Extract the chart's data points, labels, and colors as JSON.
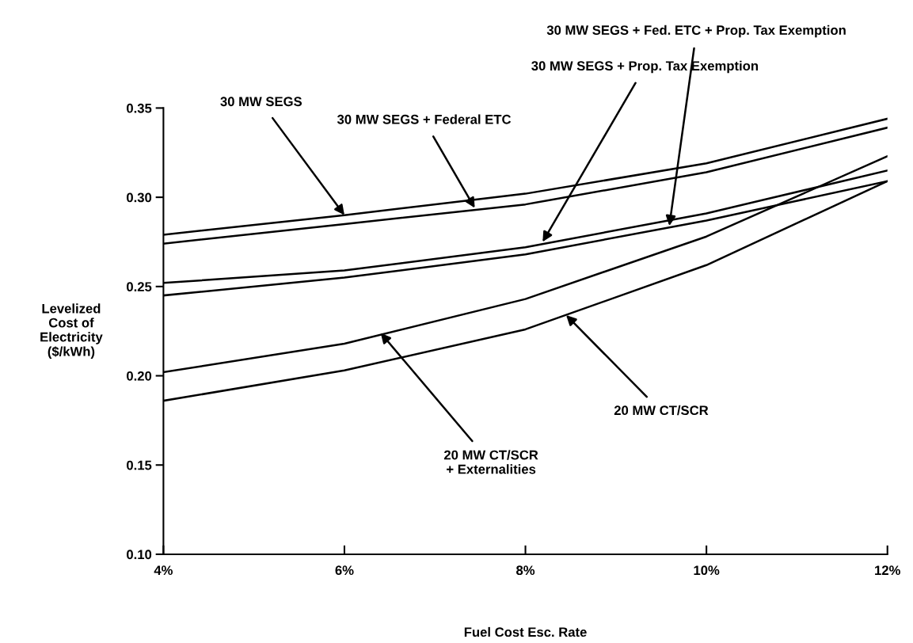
{
  "chart_data": {
    "type": "line",
    "xlabel": "Fuel Cost Esc. Rate",
    "ylabel": "Levelized\nCost of\nElectricity\n($/kWh)",
    "x": [
      4,
      6,
      8,
      10,
      12
    ],
    "series": [
      {
        "color": "#000000",
        "values": [
          0.279,
          0.29,
          0.302,
          0.319,
          0.344
        ]
      },
      {
        "color": "#000000",
        "values": [
          0.274,
          0.285,
          0.296,
          0.314,
          0.339
        ]
      },
      {
        "color": "#000000",
        "values": [
          0.252,
          0.259,
          0.272,
          0.291,
          0.315
        ]
      },
      {
        "color": "#000000",
        "values": [
          0.245,
          0.255,
          0.268,
          0.287,
          0.309
        ]
      },
      {
        "color": "#000000",
        "values": [
          0.202,
          0.218,
          0.243,
          0.278,
          0.323
        ]
      },
      {
        "color": "#000000",
        "values": [
          0.186,
          0.203,
          0.226,
          0.262,
          0.309
        ]
      }
    ],
    "annotations": [
      {
        "text": "30 MW SEGS",
        "x": 6.0,
        "y": 0.29
      },
      {
        "text": "30 MW SEGS + Federal ETC",
        "x": 7.44,
        "y": 0.294
      },
      {
        "text": "30 MW SEGS + Prop. Tax Exemption",
        "x": 8.19,
        "y": 0.275
      },
      {
        "text": "30 MW SEGS + Fed. ETC + Prop. Tax Exemption",
        "x": 9.59,
        "y": 0.284
      },
      {
        "text": "20 MW CT/SCR\n+ Externalities",
        "x": 6.4,
        "y": 0.224
      },
      {
        "text": "20 MW CT/SCR",
        "x": 8.45,
        "y": 0.234
      }
    ],
    "xlim": [
      4,
      12
    ],
    "xticks": [
      {
        "value": 4,
        "label": "4%"
      },
      {
        "value": 6,
        "label": "6%"
      },
      {
        "value": 8,
        "label": "8%"
      },
      {
        "value": 10,
        "label": "10%"
      },
      {
        "value": 12,
        "label": "12%"
      }
    ],
    "ylim": [
      0.1,
      0.35
    ],
    "yticks": [
      {
        "value": 0.1,
        "label": "0.10"
      },
      {
        "value": 0.15,
        "label": "0.15"
      },
      {
        "value": 0.2,
        "label": "0.20"
      },
      {
        "value": 0.25,
        "label": "0.25"
      },
      {
        "value": 0.3,
        "label": "0.30"
      },
      {
        "value": 0.35,
        "label": "0.35"
      }
    ],
    "grid": false,
    "legend": false,
    "marker": "none",
    "line_style": "solid"
  }
}
